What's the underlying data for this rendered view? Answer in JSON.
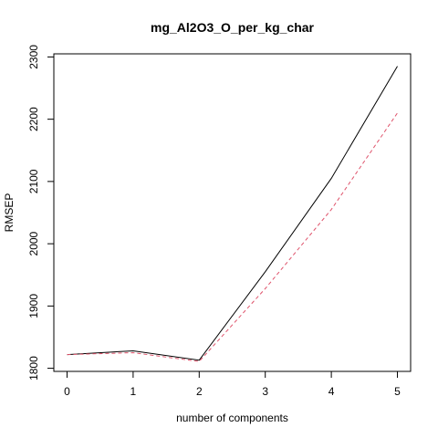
{
  "chart_data": {
    "type": "line",
    "title": "mg_Al2O3_O_per_kg_char",
    "xlabel": "number of components",
    "ylabel": "RMSEP",
    "x": [
      0,
      1,
      2,
      3,
      4,
      5
    ],
    "xlim": [
      -0.2,
      5.2
    ],
    "ylim": [
      1795,
      2305
    ],
    "xticks": [
      0,
      1,
      2,
      3,
      4,
      5
    ],
    "yticks": [
      1800,
      1900,
      2000,
      2100,
      2200,
      2300
    ],
    "grid": false,
    "series": [
      {
        "values": [
          1822,
          1828,
          1813,
          1955,
          2105,
          2285
        ],
        "color": "#000000",
        "style": "solid"
      },
      {
        "values": [
          1822,
          1825,
          1811,
          1928,
          2055,
          2210
        ],
        "color": "#df536b",
        "style": "dashed"
      }
    ]
  }
}
